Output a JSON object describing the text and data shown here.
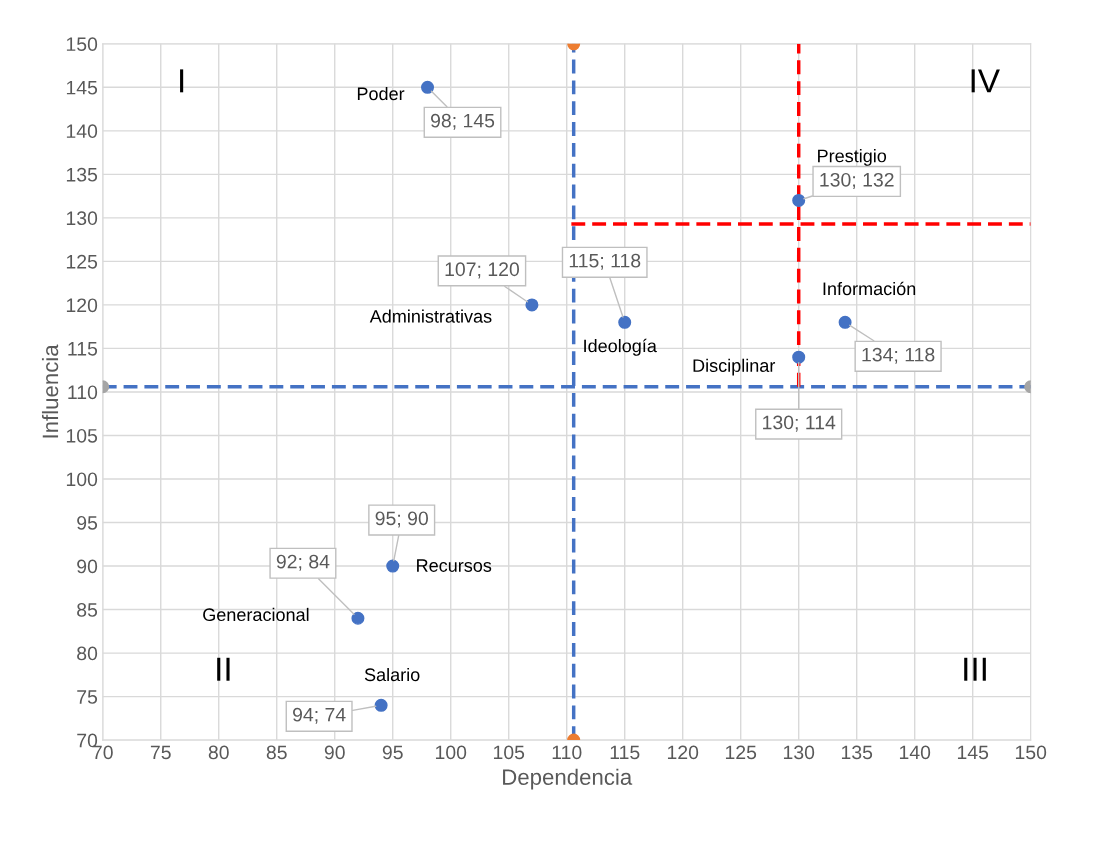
{
  "chart_data": {
    "type": "scatter",
    "xlabel": "Dependencia",
    "ylabel": "Influencia",
    "xlim": [
      70,
      150
    ],
    "ylim": [
      70,
      150
    ],
    "xticks": [
      70,
      75,
      80,
      85,
      90,
      95,
      100,
      105,
      110,
      115,
      120,
      125,
      130,
      135,
      140,
      145,
      150
    ],
    "yticks": [
      70,
      75,
      80,
      85,
      90,
      95,
      100,
      105,
      110,
      115,
      120,
      125,
      130,
      135,
      140,
      145,
      150
    ],
    "grid": true,
    "series": [
      {
        "type": "line",
        "color": "#4472c4",
        "line_style": "dashed",
        "marker": "none",
        "x": [
          110.6,
          110.6
        ],
        "values": [
          70,
          150
        ]
      },
      {
        "type": "line",
        "color": "#4472c4",
        "line_style": "dashed",
        "marker": "none",
        "x": [
          70,
          150
        ],
        "values": [
          110.6,
          110.6
        ]
      },
      {
        "type": "line",
        "color": "#ff0000",
        "line_style": "dashed",
        "marker": "none",
        "x": [
          130,
          130
        ],
        "values": [
          110.6,
          150
        ]
      },
      {
        "type": "line",
        "color": "#ff0000",
        "line_style": "dashed",
        "marker": "none",
        "x": [
          110.4,
          150
        ],
        "values": [
          129.3,
          129.3
        ]
      },
      {
        "type": "scatter",
        "color": "#ed7d31",
        "marker": "circle",
        "x": [
          110.6,
          110.6
        ],
        "values": [
          70,
          150
        ]
      },
      {
        "type": "scatter",
        "color": "#a5a5a5",
        "marker": "circle",
        "x": [
          70,
          150
        ],
        "values": [
          110.6,
          110.6
        ]
      },
      {
        "color": "#4472c4",
        "marker": "circle",
        "x": [
          98,
          107,
          115,
          130,
          134,
          130,
          95,
          92,
          94
        ],
        "values": [
          145,
          120,
          118,
          132,
          118,
          114,
          90,
          84,
          74
        ],
        "value_labels": [
          "98; 145",
          "107; 120",
          "115; 118",
          "130; 132",
          "134; 118",
          "130; 114",
          "95; 90",
          "92; 84",
          "94; 74"
        ]
      }
    ],
    "annotations": [
      "I",
      "II",
      "III",
      "IV",
      {
        "text": "Poder",
        "x": 98,
        "y": 145
      },
      {
        "text": "Administrativas",
        "x": 107,
        "y": 120
      },
      {
        "text": "Ideología",
        "x": 115,
        "y": 118
      },
      {
        "text": "Prestigio",
        "x": 130,
        "y": 132
      },
      {
        "text": "Información",
        "x": 134,
        "y": 118
      },
      {
        "text": "Disciplinar",
        "x": 130,
        "y": 114
      },
      {
        "text": "Recursos",
        "x": 95,
        "y": 90
      },
      {
        "text": "Generacional",
        "x": 92,
        "y": 84
      },
      {
        "text": "Salario",
        "x": 94,
        "y": 74
      }
    ]
  }
}
